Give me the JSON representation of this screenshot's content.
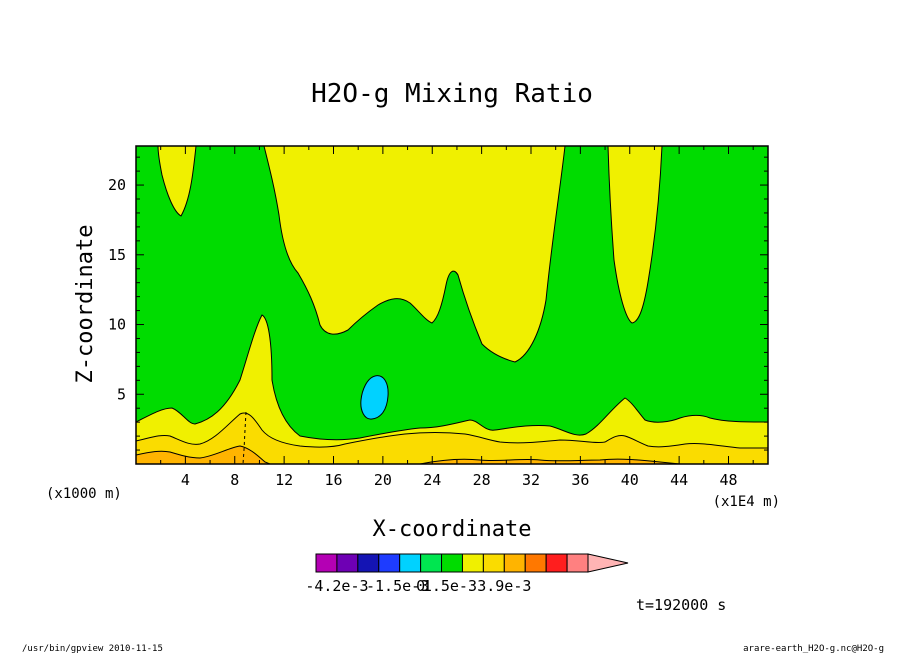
{
  "chart_data": {
    "type": "contour",
    "title": "H2O-g Mixing Ratio",
    "xlabel": "X-coordinate",
    "ylabel": "Z-coordinate",
    "x_unit_label": "(x1E4 m)",
    "z_unit_label": "(x1000 m)",
    "xlim": [
      0,
      51.2
    ],
    "ylim": [
      0,
      22.8
    ],
    "x_ticks": [
      "4",
      "8",
      "12",
      "16",
      "20",
      "24",
      "28",
      "32",
      "36",
      "40",
      "44",
      "48"
    ],
    "y_ticks": [
      "5",
      "10",
      "15",
      "20"
    ],
    "colorbar": {
      "colors": [
        "#b400b4",
        "#6e00b4",
        "#1414b4",
        "#1e3cff",
        "#00d2ff",
        "#00e650",
        "#00dc00",
        "#f0f000",
        "#fadc00",
        "#ffb400",
        "#ff7800",
        "#ff1e1e",
        "#ff8080",
        "#ffb4b4"
      ],
      "labels": [
        "-4.2e-3",
        "-1.5e-3",
        "0",
        "1.5e-3",
        "3.9e-3"
      ]
    },
    "time_label": "t=192000 s"
  },
  "footer": {
    "left": "/usr/bin/gpview   2010-11-15",
    "right": "arare-earth_H2O-g.nc@H2O-g"
  }
}
